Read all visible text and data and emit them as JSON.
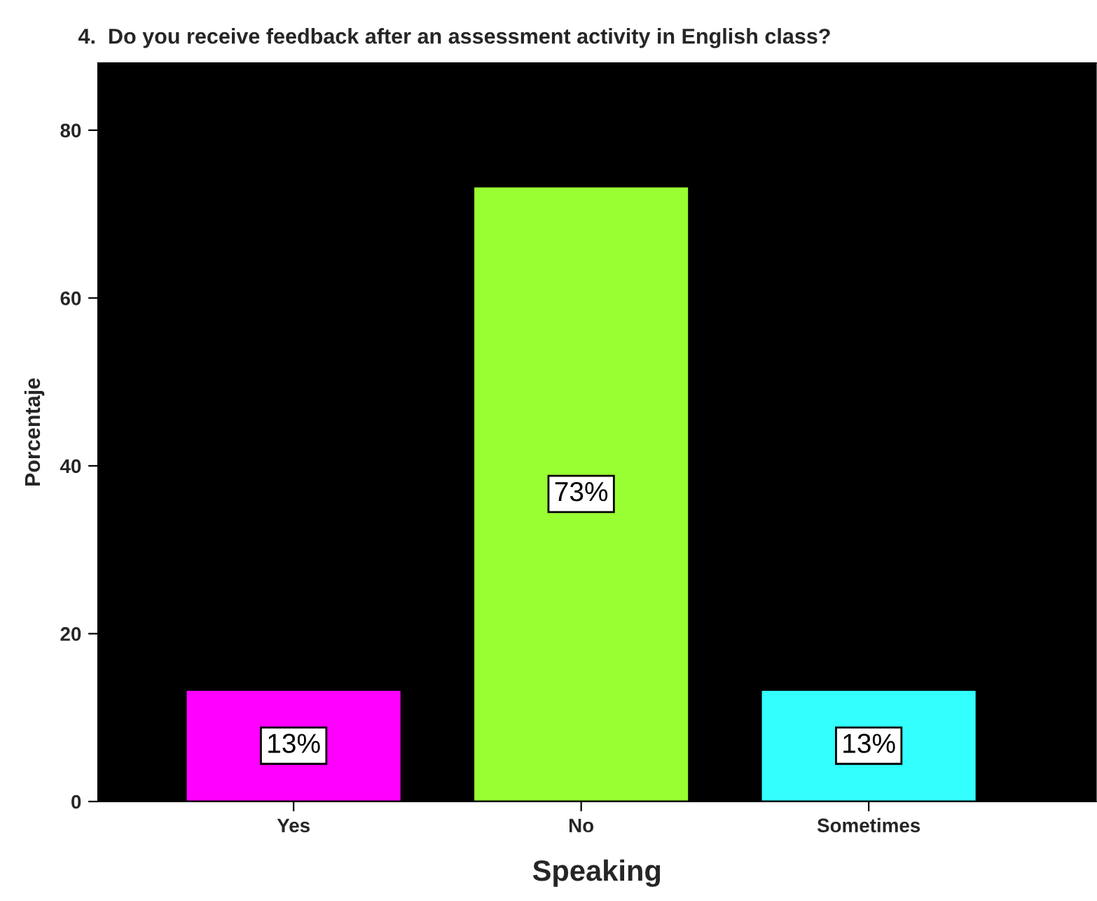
{
  "chart_data": {
    "type": "bar",
    "title": "4.  Do you receive feedback after an assessment activity in English class?",
    "xlabel": "Speaking",
    "ylabel": "Porcentaje",
    "categories": [
      "Yes",
      "No",
      "Sometimes"
    ],
    "values": [
      13.3,
      73.3,
      13.3
    ],
    "colors": [
      "#ff00ff",
      "#99ff33",
      "#33ffff"
    ],
    "value_labels": [
      "13%",
      "73%",
      "13%"
    ],
    "ylim": [
      0,
      88
    ],
    "yticks": [
      0,
      20,
      40,
      60,
      80
    ],
    "grid": false,
    "legend": false
  }
}
